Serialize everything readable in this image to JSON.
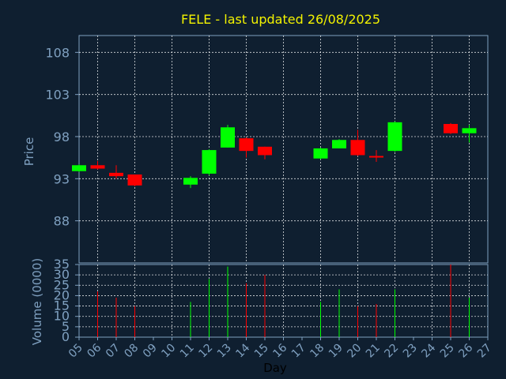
{
  "chart_data": {
    "type": "candlestick",
    "title": "FELE - last updated 26/08/2025",
    "xlabel": "Day",
    "price_panel": {
      "ylabel": "Price",
      "ylim": [
        83,
        110
      ],
      "ticks": [
        88,
        93,
        98,
        103,
        108
      ]
    },
    "volume_panel": {
      "ylabel": "Volume (0000)",
      "ylim": [
        0,
        35
      ],
      "ticks": [
        0,
        5,
        10,
        15,
        20,
        25,
        30,
        35
      ]
    },
    "x_ticks": [
      "05",
      "06",
      "07",
      "08",
      "09",
      "10",
      "11",
      "12",
      "13",
      "14",
      "15",
      "16",
      "17",
      "18",
      "19",
      "20",
      "21",
      "22",
      "23",
      "24",
      "25",
      "26",
      "27"
    ],
    "candles": [
      {
        "day": 5,
        "open": 93.9,
        "close": 94.6,
        "high": 94.7,
        "low": 93.8,
        "volume": 0
      },
      {
        "day": 6,
        "open": 94.6,
        "close": 94.2,
        "high": 95.1,
        "low": 94.1,
        "volume": 22
      },
      {
        "day": 7,
        "open": 93.7,
        "close": 93.3,
        "high": 94.6,
        "low": 93.0,
        "volume": 19
      },
      {
        "day": 8,
        "open": 93.5,
        "close": 92.2,
        "high": 93.5,
        "low": 92.1,
        "volume": 15
      },
      {
        "day": 11,
        "open": 92.3,
        "close": 93.1,
        "high": 93.3,
        "low": 91.9,
        "volume": 17
      },
      {
        "day": 12,
        "open": 93.6,
        "close": 96.4,
        "high": 96.5,
        "low": 93.4,
        "volume": 28
      },
      {
        "day": 13,
        "open": 96.7,
        "close": 99.1,
        "high": 99.4,
        "low": 96.7,
        "volume": 34
      },
      {
        "day": 14,
        "open": 97.8,
        "close": 96.3,
        "high": 97.9,
        "low": 95.5,
        "volume": 26
      },
      {
        "day": 15,
        "open": 96.8,
        "close": 95.8,
        "high": 96.8,
        "low": 95.3,
        "volume": 30
      },
      {
        "day": 18,
        "open": 95.4,
        "close": 96.6,
        "high": 96.7,
        "low": 95.3,
        "volume": 17
      },
      {
        "day": 19,
        "open": 96.6,
        "close": 97.6,
        "high": 97.7,
        "low": 96.6,
        "volume": 23
      },
      {
        "day": 20,
        "open": 97.6,
        "close": 95.8,
        "high": 98.8,
        "low": 95.7,
        "volume": 15
      },
      {
        "day": 21,
        "open": 95.7,
        "close": 95.6,
        "high": 96.4,
        "low": 95.0,
        "volume": 16
      },
      {
        "day": 22,
        "open": 96.3,
        "close": 99.7,
        "high": 99.8,
        "low": 96.2,
        "volume": 23
      },
      {
        "day": 25,
        "open": 99.5,
        "close": 98.4,
        "high": 99.6,
        "low": 98.3,
        "volume": 35
      },
      {
        "day": 26,
        "open": 98.4,
        "close": 99.0,
        "high": 99.4,
        "low": 97.3,
        "volume": 19
      }
    ],
    "colors": {
      "background": "#0f1f30",
      "up": "#00ff00",
      "down": "#ff0000",
      "grid": "#ffffff",
      "axis_text": "#7fa0c0",
      "title": "#f2f200"
    }
  }
}
